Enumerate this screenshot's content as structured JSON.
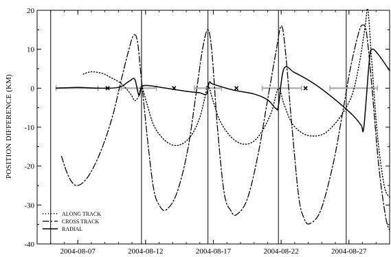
{
  "chart_data": {
    "type": "line",
    "ylabel": "POSITION DIFFERENCE (KM)",
    "xlim": [
      "2004-08-04",
      "2004-08-30"
    ],
    "ylim": [
      -40,
      20
    ],
    "x_ticks": [
      "2004-08-07",
      "2004-08-12",
      "2004-08-17",
      "2004-08-22",
      "2004-08-27"
    ],
    "y_ticks": [
      20,
      10,
      0,
      -10,
      -20,
      -30,
      -40
    ],
    "vertical_lines": [
      "2004-08-05",
      "2004-08-11.7",
      "2004-08-16.6",
      "2004-08-21.8",
      "2004-08-26.8"
    ],
    "gray_intervals": [
      {
        "start": "2004-08-05.4",
        "end": "2004-08-08.5",
        "y": 0
      },
      {
        "start": "2004-08-10.2",
        "end": "2004-08-12.8",
        "y": 0
      },
      {
        "start": "2004-08-15.6",
        "end": "2004-08-17.6",
        "y": 0
      },
      {
        "start": "2004-08-20.6",
        "end": "2004-08-23.5",
        "y": 0
      },
      {
        "start": "2004-08-25.6",
        "end": "2004-08-29.1",
        "y": 0
      }
    ],
    "markers": [
      {
        "x": "2004-08-09.2",
        "y": 0,
        "symbol": "x"
      },
      {
        "x": "2004-08-14.1",
        "y": 0,
        "symbol": "x"
      },
      {
        "x": "2004-08-18.7",
        "y": 0,
        "symbol": "x"
      },
      {
        "x": "2004-08-23.8",
        "y": 0,
        "symbol": "x"
      }
    ],
    "legend_position": "bottom-left",
    "series": [
      {
        "name": "ALONG TRACK",
        "style": "dotted",
        "points": [
          [
            "2004-08-07.4",
            3.6
          ],
          [
            "2004-08-08.0",
            4.2
          ],
          [
            "2004-08-08.8",
            3.8
          ],
          [
            "2004-08-09.4",
            2.8
          ],
          [
            "2004-08-10.2",
            1.2
          ],
          [
            "2004-08-10.9",
            -1.5
          ],
          [
            "2004-08-11.2",
            -3.2
          ],
          [
            "2004-08-11.5",
            -2.0
          ],
          [
            "2004-08-11.7",
            0.5
          ],
          [
            "2004-08-12.1",
            -4.0
          ],
          [
            "2004-08-12.6",
            -9.5
          ],
          [
            "2004-08-13.3",
            -13.0
          ],
          [
            "2004-08-14.0",
            -14.6
          ],
          [
            "2004-08-14.7",
            -14.3
          ],
          [
            "2004-08-15.4",
            -12.0
          ],
          [
            "2004-08-16.0",
            -7.5
          ],
          [
            "2004-08-16.4",
            -2.0
          ],
          [
            "2004-08-16.6",
            0.8
          ],
          [
            "2004-08-17.0",
            -3.5
          ],
          [
            "2004-08-17.5",
            -8.5
          ],
          [
            "2004-08-18.3",
            -12.5
          ],
          [
            "2004-08-19.1",
            -14.3
          ],
          [
            "2004-08-19.9",
            -13.8
          ],
          [
            "2004-08-20.6",
            -11.0
          ],
          [
            "2004-08-21.3",
            -6.0
          ],
          [
            "2004-08-21.8",
            0.0
          ],
          [
            "2004-08-22.2",
            -4.0
          ],
          [
            "2004-08-22.8",
            -9.0
          ],
          [
            "2004-08-23.6",
            -11.6
          ],
          [
            "2004-08-24.4",
            -12.3
          ],
          [
            "2004-08-25.2",
            -11.6
          ],
          [
            "2004-08-26.0",
            -9.0
          ],
          [
            "2004-08-26.7",
            -5.5
          ],
          [
            "2004-08-27.3",
            -1.0
          ],
          [
            "2004-08-27.8",
            7.0
          ],
          [
            "2004-08-28.2",
            16.0
          ],
          [
            "2004-08-28.4",
            20.0
          ],
          [
            "2004-08-28.7",
            6.0
          ],
          [
            "2004-08-29.1",
            -12.0
          ],
          [
            "2004-08-29.6",
            -25.0
          ],
          [
            "2004-08-30.0",
            -28.0
          ]
        ]
      },
      {
        "name": "CROSS TRACK",
        "style": "dashdot",
        "points": [
          [
            "2004-08-05.8",
            -17.5
          ],
          [
            "2004-08-06.3",
            -22.5
          ],
          [
            "2004-08-06.9",
            -25.0
          ],
          [
            "2004-08-07.7",
            -23.0
          ],
          [
            "2004-08-08.6",
            -17.0
          ],
          [
            "2004-08-09.5",
            -8.0
          ],
          [
            "2004-08-10.2",
            2.0
          ],
          [
            "2004-08-10.7",
            9.0
          ],
          [
            "2004-08-11.1",
            13.5
          ],
          [
            "2004-08-11.4",
            12.0
          ],
          [
            "2004-08-11.7",
            2.0
          ],
          [
            "2004-08-12.2",
            -15.0
          ],
          [
            "2004-08-12.6",
            -26.0
          ],
          [
            "2004-08-13.0",
            -30.0
          ],
          [
            "2004-08-13.5",
            -31.3
          ],
          [
            "2004-08-14.3",
            -27.0
          ],
          [
            "2004-08-15.1",
            -16.0
          ],
          [
            "2004-08-15.7",
            -2.0
          ],
          [
            "2004-08-16.2",
            10.0
          ],
          [
            "2004-08-16.6",
            15.0
          ],
          [
            "2004-08-16.9",
            9.0
          ],
          [
            "2004-08-17.3",
            -10.0
          ],
          [
            "2004-08-17.8",
            -27.0
          ],
          [
            "2004-08-18.3",
            -31.5
          ],
          [
            "2004-08-18.7",
            -32.5
          ],
          [
            "2004-08-19.5",
            -28.5
          ],
          [
            "2004-08-20.3",
            -17.0
          ],
          [
            "2004-08-21.0",
            -3.0
          ],
          [
            "2004-08-21.6",
            9.0
          ],
          [
            "2004-08-22.0",
            16.0
          ],
          [
            "2004-08-22.3",
            10.0
          ],
          [
            "2004-08-22.8",
            -10.0
          ],
          [
            "2004-08-23.3",
            -28.0
          ],
          [
            "2004-08-23.7",
            -33.5
          ],
          [
            "2004-08-24.1",
            -34.8
          ],
          [
            "2004-08-24.9",
            -31.5
          ],
          [
            "2004-08-25.8",
            -20.0
          ],
          [
            "2004-08-26.5",
            -7.0
          ],
          [
            "2004-08-27.1",
            5.0
          ],
          [
            "2004-08-27.7",
            14.0
          ],
          [
            "2004-08-28.0",
            16.2
          ],
          [
            "2004-08-28.3",
            14.0
          ],
          [
            "2004-08-28.7",
            0.0
          ],
          [
            "2004-08-29.2",
            -20.0
          ],
          [
            "2004-08-29.7",
            -33.0
          ],
          [
            "2004-08-30.0",
            -36.5
          ]
        ]
      },
      {
        "name": "RADIAL",
        "style": "solid",
        "points": [
          [
            "2004-08-05.4",
            0.0
          ],
          [
            "2004-08-07.0",
            0.2
          ],
          [
            "2004-08-08.5",
            0.0
          ],
          [
            "2004-08-10.0",
            0.2
          ],
          [
            "2004-08-10.8",
            1.8
          ],
          [
            "2004-08-11.2",
            2.3
          ],
          [
            "2004-08-11.5",
            -1.8
          ],
          [
            "2004-08-11.7",
            0.2
          ],
          [
            "2004-08-12.1",
            0.7
          ],
          [
            "2004-08-13.5",
            0.0
          ],
          [
            "2004-08-15.0",
            -0.8
          ],
          [
            "2004-08-16.0",
            -1.2
          ],
          [
            "2004-08-16.5",
            -1.5
          ],
          [
            "2004-08-16.7",
            1.5
          ],
          [
            "2004-08-17.0",
            1.0
          ],
          [
            "2004-08-18.5",
            -0.5
          ],
          [
            "2004-08-20.0",
            -1.5
          ],
          [
            "2004-08-21.0",
            -3.0
          ],
          [
            "2004-08-21.6",
            -5.2
          ],
          [
            "2004-08-21.8",
            -4.5
          ],
          [
            "2004-08-22.2",
            5.0
          ],
          [
            "2004-08-23.0",
            4.0
          ],
          [
            "2004-08-24.5",
            1.0
          ],
          [
            "2004-08-26.0",
            -3.0
          ],
          [
            "2004-08-27.3",
            -7.0
          ],
          [
            "2004-08-27.9",
            -9.5
          ],
          [
            "2004-08-28.1",
            -10.0
          ],
          [
            "2004-08-28.5",
            7.0
          ],
          [
            "2004-08-28.7",
            10.0
          ],
          [
            "2004-08-29.2",
            8.5
          ],
          [
            "2004-08-30.0",
            4.5
          ]
        ]
      }
    ]
  }
}
